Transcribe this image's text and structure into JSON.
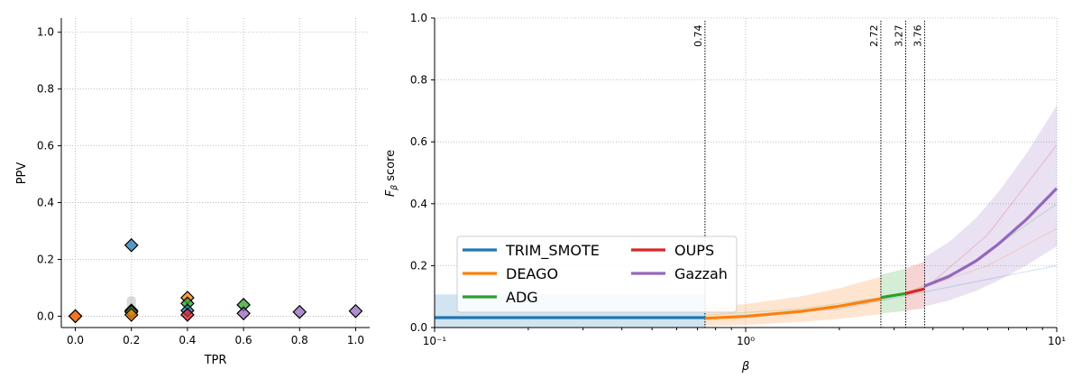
{
  "chart_data": [
    {
      "type": "scatter",
      "xlabel": "TPR",
      "ylabel": "PPV",
      "xlim": [
        -0.05,
        1.05
      ],
      "ylim": [
        -0.04,
        1.05
      ],
      "xticks": [
        "0.0",
        "0.2",
        "0.4",
        "0.6",
        "0.8",
        "1.0"
      ],
      "yticks": [
        "0.0",
        "0.2",
        "0.4",
        "0.6",
        "0.8",
        "1.0"
      ],
      "grid": true,
      "points": [
        {
          "x": 0.0,
          "y": 0.0,
          "color": "#d62728"
        },
        {
          "x": 0.0,
          "y": 0.0,
          "color": "#ff7f0e"
        },
        {
          "x": 0.2,
          "y": 0.25,
          "color": "#1f77b4"
        },
        {
          "x": 0.2,
          "y": 0.02,
          "color": "#aaaaaa"
        },
        {
          "x": 0.2,
          "y": 0.015,
          "color": "#2ca02c"
        },
        {
          "x": 0.2,
          "y": 0.005,
          "color": "#ff7f0e"
        },
        {
          "x": 0.4,
          "y": 0.065,
          "color": "#ff7f0e"
        },
        {
          "x": 0.4,
          "y": 0.045,
          "color": "#2ca02c"
        },
        {
          "x": 0.4,
          "y": 0.02,
          "color": "#1f77b4"
        },
        {
          "x": 0.4,
          "y": 0.005,
          "color": "#d62728"
        },
        {
          "x": 0.6,
          "y": 0.04,
          "color": "#2ca02c"
        },
        {
          "x": 0.6,
          "y": 0.01,
          "color": "#9467bd"
        },
        {
          "x": 0.8,
          "y": 0.015,
          "color": "#9467bd"
        },
        {
          "x": 1.0,
          "y": 0.018,
          "color": "#9467bd"
        }
      ]
    },
    {
      "type": "line",
      "xlabel": "β",
      "ylabel": "F_β score",
      "xscale": "log",
      "xlim": [
        0.1,
        10
      ],
      "ylim": [
        0.0,
        1.0
      ],
      "xticks": [
        "10⁻¹",
        "10⁰",
        "10¹"
      ],
      "yticks": [
        "0.0",
        "0.2",
        "0.4",
        "0.6",
        "0.8",
        "1.0"
      ],
      "grid": true,
      "legend_position": "lower-left",
      "thresholds": [
        "0.74",
        "2.72",
        "3.27",
        "3.76"
      ],
      "series": [
        {
          "name": "TRIM_SMOTE",
          "color": "#1f77b4",
          "segment": [
            0.1,
            0.74
          ],
          "x": [
            0.1,
            0.2,
            0.4,
            0.74,
            2,
            5,
            10
          ],
          "y": [
            0.032,
            0.032,
            0.032,
            0.032,
            0.06,
            0.14,
            0.2
          ]
        },
        {
          "name": "DEAGO",
          "color": "#ff7f0e",
          "segment": [
            0.74,
            2.72
          ],
          "x": [
            0.74,
            1.0,
            1.5,
            2.0,
            2.72,
            4,
            6,
            10
          ],
          "y": [
            0.03,
            0.036,
            0.052,
            0.069,
            0.093,
            0.14,
            0.2,
            0.32
          ]
        },
        {
          "name": "ADG",
          "color": "#2ca02c",
          "segment": [
            2.72,
            3.27
          ],
          "x": [
            0.74,
            1.5,
            2.72,
            3.27,
            5,
            10
          ],
          "y": [
            0.04,
            0.06,
            0.097,
            0.11,
            0.19,
            0.4
          ]
        },
        {
          "name": "OUPS",
          "color": "#d62728",
          "segment": [
            3.27,
            3.76
          ],
          "x": [
            1.5,
            2.72,
            3.27,
            3.76,
            6,
            10
          ],
          "y": [
            0.05,
            0.09,
            0.11,
            0.125,
            0.3,
            0.59
          ]
        },
        {
          "name": "Gazzah",
          "color": "#9467bd",
          "segment": [
            3.76,
            10
          ],
          "x": [
            3.76,
            4.5,
            5.5,
            6.5,
            8,
            10
          ],
          "y": [
            0.134,
            0.165,
            0.215,
            0.27,
            0.35,
            0.45
          ]
        }
      ]
    }
  ]
}
